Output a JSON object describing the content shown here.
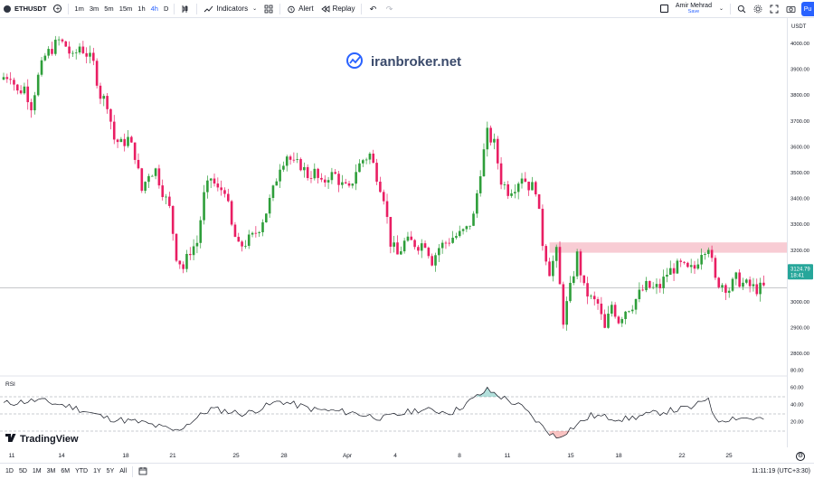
{
  "toolbar": {
    "symbol": "ETHUSDT",
    "timeframes": [
      "1m",
      "3m",
      "5m",
      "15m",
      "1h",
      "4h",
      "D"
    ],
    "active_timeframe": "4h",
    "indicators_label": "Indicators",
    "alert_label": "Alert",
    "replay_label": "Replay",
    "user_name": "Amir Mehrad",
    "save_label": "Save",
    "publish_label": "Pu"
  },
  "watermark": {
    "text": "iranbroker.net"
  },
  "price_axis": {
    "currency": "USDT",
    "ticks": [
      "4000.00",
      "3900.00",
      "3800.00",
      "3700.00",
      "3600.00",
      "3500.00",
      "3400.00",
      "3300.00",
      "3200.00",
      "3100.00",
      "3000.00",
      "2900.00",
      "2800.00"
    ],
    "last_price": "3124.79",
    "countdown": "18:41"
  },
  "rsi": {
    "label": "RSI",
    "ticks": [
      "80.00",
      "60.00",
      "40.00",
      "20.00"
    ]
  },
  "time_axis": {
    "labels": [
      "11",
      "14",
      "18",
      "21",
      "25",
      "28",
      "Apr",
      "4",
      "8",
      "11",
      "15",
      "18",
      "22",
      "25"
    ]
  },
  "branding": {
    "logo_text": "TradingView"
  },
  "bottombar": {
    "ranges": [
      "1D",
      "5D",
      "1M",
      "3M",
      "6M",
      "YTD",
      "1Y",
      "5Y",
      "All"
    ],
    "clock": "11:11:19 (UTC+3:30)"
  },
  "chart_data": {
    "type": "candlestick",
    "symbol": "ETHUSDT",
    "interval": "4h",
    "ylim": [
      2800,
      4100
    ],
    "last_price": 3124.79,
    "resistance_zone": [
      3260,
      3300
    ],
    "close_path": [
      [
        0,
        3940
      ],
      [
        2,
        3950
      ],
      [
        4,
        3880
      ],
      [
        6,
        3900
      ],
      [
        8,
        3830
      ],
      [
        10,
        3940
      ],
      [
        12,
        4020
      ],
      [
        14,
        4050
      ],
      [
        16,
        4080
      ],
      [
        18,
        4060
      ],
      [
        20,
        4010
      ],
      [
        22,
        4060
      ],
      [
        24,
        4030
      ],
      [
        26,
        3990
      ],
      [
        28,
        3870
      ],
      [
        30,
        3840
      ],
      [
        32,
        3700
      ],
      [
        34,
        3680
      ],
      [
        36,
        3700
      ],
      [
        38,
        3640
      ],
      [
        40,
        3500
      ],
      [
        42,
        3570
      ],
      [
        44,
        3580
      ],
      [
        46,
        3500
      ],
      [
        48,
        3430
      ],
      [
        50,
        3250
      ],
      [
        52,
        3200
      ],
      [
        54,
        3270
      ],
      [
        56,
        3300
      ],
      [
        58,
        3480
      ],
      [
        60,
        3550
      ],
      [
        62,
        3500
      ],
      [
        64,
        3510
      ],
      [
        66,
        3360
      ],
      [
        68,
        3280
      ],
      [
        70,
        3300
      ],
      [
        72,
        3320
      ],
      [
        74,
        3360
      ],
      [
        76,
        3420
      ],
      [
        78,
        3500
      ],
      [
        80,
        3600
      ],
      [
        82,
        3640
      ],
      [
        84,
        3600
      ],
      [
        86,
        3600
      ],
      [
        88,
        3560
      ],
      [
        90,
        3570
      ],
      [
        92,
        3520
      ],
      [
        94,
        3560
      ],
      [
        96,
        3560
      ],
      [
        98,
        3520
      ],
      [
        100,
        3500
      ],
      [
        102,
        3580
      ],
      [
        104,
        3620
      ],
      [
        106,
        3640
      ],
      [
        108,
        3560
      ],
      [
        110,
        3480
      ],
      [
        112,
        3300
      ],
      [
        114,
        3250
      ],
      [
        116,
        3300
      ],
      [
        118,
        3300
      ],
      [
        120,
        3290
      ],
      [
        122,
        3300
      ],
      [
        124,
        3230
      ],
      [
        126,
        3280
      ],
      [
        128,
        3300
      ],
      [
        130,
        3320
      ],
      [
        132,
        3330
      ],
      [
        134,
        3350
      ],
      [
        136,
        3400
      ],
      [
        138,
        3580
      ],
      [
        140,
        3720
      ],
      [
        142,
        3680
      ],
      [
        144,
        3540
      ],
      [
        146,
        3500
      ],
      [
        148,
        3520
      ],
      [
        150,
        3560
      ],
      [
        152,
        3520
      ],
      [
        154,
        3510
      ],
      [
        156,
        3300
      ],
      [
        158,
        3190
      ],
      [
        160,
        3260
      ],
      [
        162,
        3000
      ],
      [
        164,
        3120
      ],
      [
        166,
        3250
      ],
      [
        168,
        3120
      ],
      [
        170,
        3080
      ],
      [
        172,
        3060
      ],
      [
        174,
        2960
      ],
      [
        176,
        3060
      ],
      [
        178,
        3000
      ],
      [
        180,
        3040
      ],
      [
        182,
        3060
      ],
      [
        184,
        3100
      ],
      [
        186,
        3130
      ],
      [
        188,
        3120
      ],
      [
        190,
        3130
      ],
      [
        192,
        3180
      ],
      [
        194,
        3200
      ],
      [
        196,
        3210
      ],
      [
        198,
        3190
      ],
      [
        200,
        3200
      ],
      [
        202,
        3270
      ],
      [
        204,
        3290
      ],
      [
        206,
        3150
      ],
      [
        208,
        3140
      ],
      [
        210,
        3120
      ],
      [
        212,
        3160
      ],
      [
        214,
        3140
      ],
      [
        216,
        3130
      ],
      [
        218,
        3120
      ],
      [
        220,
        3125
      ]
    ],
    "rsi_path": [
      [
        0,
        62
      ],
      [
        10,
        66
      ],
      [
        20,
        58
      ],
      [
        30,
        45
      ],
      [
        40,
        40
      ],
      [
        50,
        30
      ],
      [
        60,
        56
      ],
      [
        70,
        50
      ],
      [
        80,
        65
      ],
      [
        90,
        55
      ],
      [
        100,
        52
      ],
      [
        110,
        45
      ],
      [
        120,
        55
      ],
      [
        130,
        52
      ],
      [
        140,
        78
      ],
      [
        150,
        58
      ],
      [
        156,
        35
      ],
      [
        160,
        22
      ],
      [
        170,
        48
      ],
      [
        180,
        44
      ],
      [
        190,
        52
      ],
      [
        200,
        58
      ],
      [
        204,
        70
      ],
      [
        206,
        42
      ],
      [
        212,
        46
      ],
      [
        220,
        44
      ]
    ]
  }
}
